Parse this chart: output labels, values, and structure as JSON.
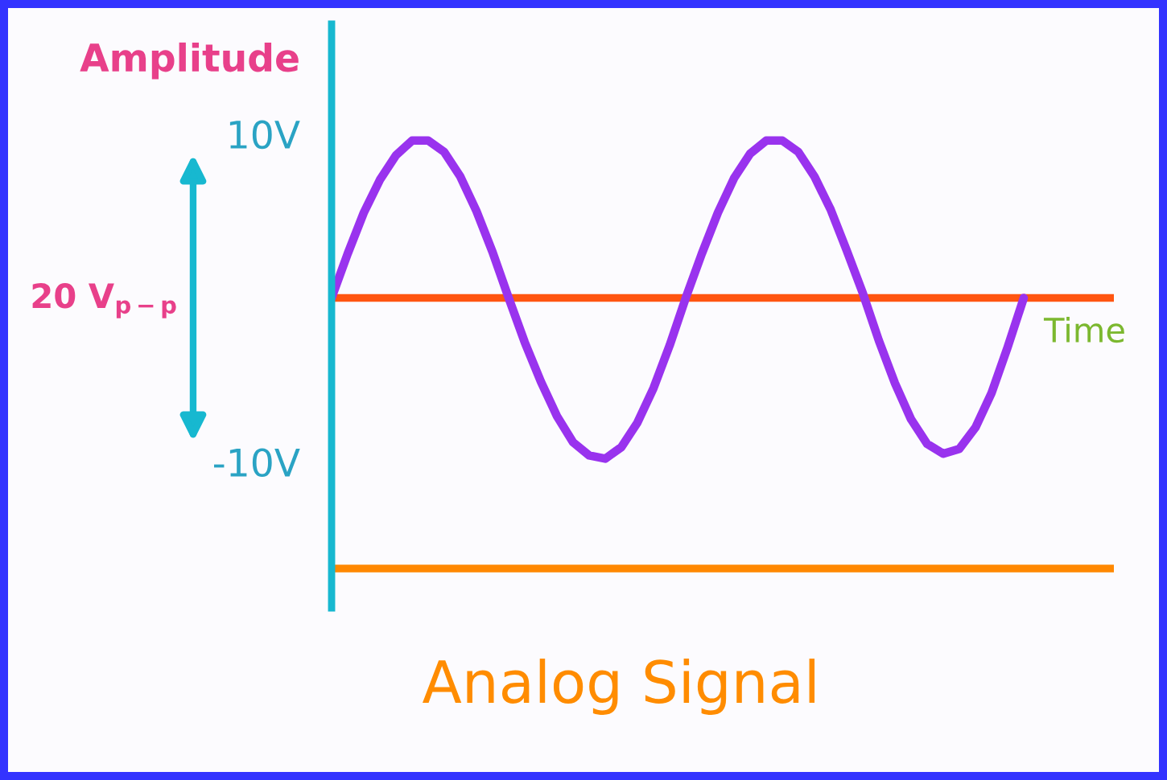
{
  "chart_data": {
    "type": "line",
    "title": "Analog Signal",
    "xlabel": "Time",
    "ylabel": "Amplitude",
    "annotations": [
      "20 V$_{p−p}$"
    ],
    "categories": [
      null,
      null,
      null,
      null,
      null,
      null,
      null,
      null,
      null,
      null,
      null,
      null,
      null,
      null,
      null,
      null,
      null,
      null,
      null,
      null,
      null,
      null,
      null,
      null,
      null,
      null,
      null,
      null,
      null,
      null,
      null,
      null,
      null,
      null,
      null,
      null,
      null,
      null,
      null,
      null,
      null,
      null,
      null,
      null
    ],
    "series": [
      {
        "color": "#9933ee",
        "values": [
          0,
          2.7,
          5.2,
          7.2,
          8.7,
          9.6,
          9.6,
          8.9,
          7.4,
          5.3,
          2.8,
          0,
          -2.7,
          -5.1,
          -7.2,
          -8.8,
          -9.6,
          -9.8,
          -9.1,
          -7.6,
          -5.5,
          -2.9,
          0,
          2.7,
          5.2,
          7.3,
          8.8,
          9.6,
          9.6,
          8.9,
          7.4,
          5.4,
          2.9,
          0.3,
          -2.6,
          -5.2,
          -7.4,
          -8.9,
          -9.5,
          -9.2,
          -7.9,
          -5.8,
          -3.0,
          0
        ]
      }
    ],
    "ylim": [
      -18.9,
      16.7
    ],
    "yticks": [
      {
        "value": 10,
        "label": "10V"
      },
      {
        "value": -10,
        "label": "-10V"
      }
    ],
    "tick_labels": "y",
    "ref_lines": [
      {
        "axis": "y",
        "value": 0,
        "color": "#ff5511"
      },
      {
        "axis": "y",
        "value": -16.5,
        "color": "#ff8800"
      }
    ]
  }
}
